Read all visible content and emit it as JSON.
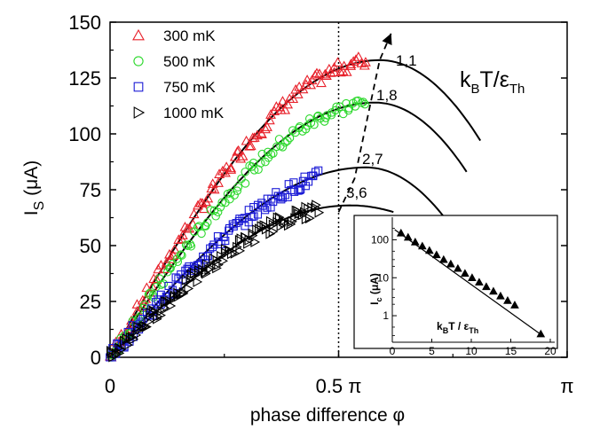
{
  "chart_data": [
    {
      "type": "scatter",
      "xlabel": "phase difference φ",
      "ylabel": "I_S (μA)",
      "xlim": [
        0,
        1
      ],
      "ylim": [
        0,
        150
      ],
      "x_ticks": [
        {
          "value": 0,
          "label": "0"
        },
        {
          "value": 0.5,
          "label": "0.5 π"
        },
        {
          "value": 1.0,
          "label": "π"
        }
      ],
      "y_ticks": [
        {
          "value": 0,
          "label": "0"
        },
        {
          "value": 25,
          "label": "25"
        },
        {
          "value": 50,
          "label": "50"
        },
        {
          "value": 75,
          "label": "75"
        },
        {
          "value": 100,
          "label": "100"
        },
        {
          "value": 125,
          "label": "125"
        },
        {
          "value": 150,
          "label": "150"
        }
      ],
      "annotation": "k_B T/ε_Th",
      "vertical_marker_x": 0.5,
      "series": [
        {
          "name": "300 mK",
          "marker": "triangle-up",
          "color": "#e8202a",
          "x_range": [
            0,
            0.56
          ],
          "amplitude": 133,
          "peak_x": 0.59
        },
        {
          "name": "500 mK",
          "marker": "circle",
          "color": "#2bd82b",
          "x_range": [
            0,
            0.56
          ],
          "amplitude": 114,
          "peak_x": 0.59
        },
        {
          "name": "750 mK",
          "marker": "square",
          "color": "#1a1ad6",
          "x_range": [
            0,
            0.455
          ],
          "amplitude": 85,
          "peak_x": 0.57
        },
        {
          "name": "1000 mK",
          "marker": "triangle-right",
          "color": "#000000",
          "x_range": [
            0,
            0.455
          ],
          "amplitude": 68,
          "peak_x": 0.535
        }
      ],
      "theory_curves": [
        {
          "label": "1,1",
          "amplitude": 133,
          "peak_x": 0.59,
          "x_end": 0.81,
          "y_end": 97
        },
        {
          "label": "1,8",
          "amplitude": 114,
          "peak_x": 0.58,
          "x_end": 0.78,
          "y_end": 83
        },
        {
          "label": "2,7",
          "amplitude": 85,
          "peak_x": 0.56,
          "x_end": 0.73,
          "y_end": 63
        },
        {
          "label": "3,6",
          "amplitude": 68,
          "peak_x": 0.525,
          "x_end": 0.62,
          "y_end": 65
        }
      ],
      "dashed_arrow": [
        [
          0.5,
          65
        ],
        [
          0.535,
          80
        ],
        [
          0.59,
          133
        ],
        [
          0.615,
          145
        ]
      ]
    },
    {
      "type": "scatter",
      "xlabel": "k_B T / ε_Th",
      "ylabel": "I_c (μA)",
      "xlim": [
        0,
        20
      ],
      "ylim": [
        0.2,
        300
      ],
      "yscale": "log",
      "x_ticks": [
        0,
        5,
        10,
        15,
        20
      ],
      "y_ticks": [
        {
          "value": 1,
          "label": "1"
        },
        {
          "value": 10,
          "label": "10"
        },
        {
          "value": 100,
          "label": "100"
        }
      ],
      "points": [
        [
          1.1,
          150
        ],
        [
          2.0,
          116
        ],
        [
          2.9,
          87
        ],
        [
          3.8,
          68
        ],
        [
          4.7,
          52
        ],
        [
          5.6,
          40
        ],
        [
          6.5,
          30
        ],
        [
          7.4,
          23
        ],
        [
          8.3,
          17.5
        ],
        [
          9.2,
          13
        ],
        [
          10.1,
          10
        ],
        [
          11.0,
          7.6
        ],
        [
          11.9,
          5.8
        ],
        [
          12.8,
          4.4
        ],
        [
          13.7,
          3.3
        ],
        [
          14.6,
          2.5
        ],
        [
          15.5,
          1.9
        ],
        [
          18.8,
          0.33
        ]
      ],
      "fit_line": [
        [
          0.3,
          185
        ],
        [
          19.2,
          0.28
        ]
      ]
    }
  ]
}
